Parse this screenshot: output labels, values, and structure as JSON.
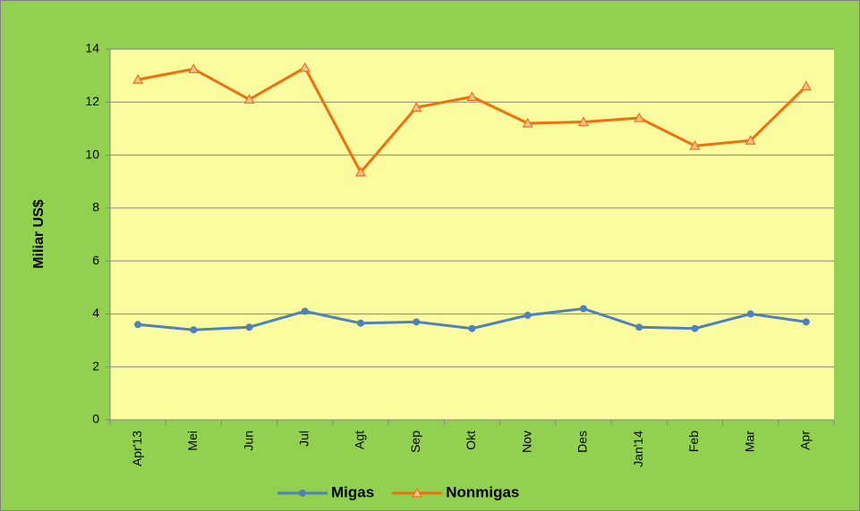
{
  "chart_data": {
    "type": "line",
    "ylabel": "Miliar US$",
    "categories": [
      "Apr'13",
      "Mei",
      "Jun",
      "Jul",
      "Agt",
      "Sep",
      "Okt",
      "Nov",
      "Des",
      "Jan'14",
      "Feb",
      "Mar",
      "Apr"
    ],
    "series": [
      {
        "name": "Migas",
        "color": "#4f81bd",
        "marker": "circle",
        "values": [
          3.6,
          3.4,
          3.5,
          4.1,
          3.65,
          3.7,
          3.45,
          3.95,
          4.2,
          3.5,
          3.45,
          4.0,
          3.7
        ]
      },
      {
        "name": "Nonmigas",
        "color": "#f07010",
        "marker": "triangle",
        "values": [
          12.85,
          13.25,
          12.1,
          13.3,
          9.35,
          11.8,
          12.2,
          11.2,
          11.25,
          11.4,
          10.35,
          10.55,
          12.6
        ]
      }
    ],
    "ylim": [
      0,
      14
    ],
    "yticks": [
      0,
      2,
      4,
      6,
      8,
      10,
      12,
      14
    ],
    "grid": true,
    "legend": "bottom"
  }
}
